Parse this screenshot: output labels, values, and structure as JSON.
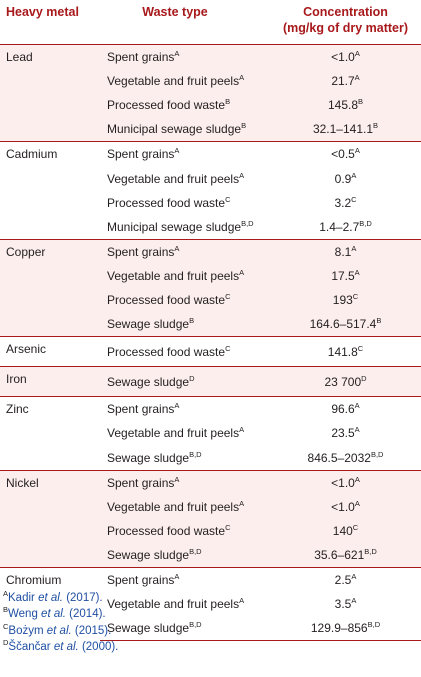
{
  "headers": {
    "metal": "Heavy metal",
    "waste": "Waste type",
    "conc_line1": "Concentration",
    "conc_line2": "(mg/kg of dry matter)"
  },
  "groups": [
    {
      "metal": "Lead",
      "rows": [
        {
          "waste": "Spent grains",
          "waste_sup": "A",
          "value": "<1.0",
          "value_sup": "A"
        },
        {
          "waste": "Vegetable and fruit peels",
          "waste_sup": "A",
          "value": "21.7",
          "value_sup": "A"
        },
        {
          "waste": "Processed food waste",
          "waste_sup": "B",
          "value": "145.8",
          "value_sup": "B"
        },
        {
          "waste": "Municipal sewage sludge",
          "waste_sup": "B",
          "value": "32.1–141.1",
          "value_sup": "B"
        }
      ]
    },
    {
      "metal": "Cadmium",
      "rows": [
        {
          "waste": "Spent grains",
          "waste_sup": "A",
          "value": "<0.5",
          "value_sup": "A"
        },
        {
          "waste": "Vegetable and fruit peels",
          "waste_sup": "A",
          "value": "0.9",
          "value_sup": "A"
        },
        {
          "waste": "Processed food waste",
          "waste_sup": "C",
          "value": "3.2",
          "value_sup": "C"
        },
        {
          "waste": "Municipal sewage sludge",
          "waste_sup": "B,D",
          "value": "1.4–2.7",
          "value_sup": "B,D"
        }
      ]
    },
    {
      "metal": "Copper",
      "rows": [
        {
          "waste": "Spent grains",
          "waste_sup": "A",
          "value": "8.1",
          "value_sup": "A"
        },
        {
          "waste": "Vegetable and fruit peels",
          "waste_sup": "A",
          "value": "17.5",
          "value_sup": "A"
        },
        {
          "waste": "Processed food waste",
          "waste_sup": "C",
          "value": "193",
          "value_sup": "C"
        },
        {
          "waste": "Sewage sludge",
          "waste_sup": "B",
          "value": "164.6–517.4",
          "value_sup": "B"
        }
      ]
    },
    {
      "metal": "Arsenic",
      "rows": [
        {
          "waste": "Processed food waste",
          "waste_sup": "C",
          "value": "141.8",
          "value_sup": "C"
        }
      ]
    },
    {
      "metal": "Iron",
      "rows": [
        {
          "waste": "Sewage sludge",
          "waste_sup": "D",
          "value": "23 700",
          "value_sup": "D"
        }
      ]
    },
    {
      "metal": "Zinc",
      "rows": [
        {
          "waste": "Spent grains",
          "waste_sup": "A",
          "value": "96.6",
          "value_sup": "A"
        },
        {
          "waste": "Vegetable and fruit peels",
          "waste_sup": "A",
          "value": "23.5",
          "value_sup": "A"
        },
        {
          "waste": "Sewage sludge",
          "waste_sup": "B,D",
          "value": "846.5–2032",
          "value_sup": "B,D"
        }
      ]
    },
    {
      "metal": "Nickel",
      "rows": [
        {
          "waste": "Spent grains",
          "waste_sup": "A",
          "value": "<1.0",
          "value_sup": "A"
        },
        {
          "waste": "Vegetable and fruit peels",
          "waste_sup": "A",
          "value": "<1.0",
          "value_sup": "A"
        },
        {
          "waste": "Processed food waste",
          "waste_sup": "C",
          "value": "140",
          "value_sup": "C"
        },
        {
          "waste": "Sewage sludge",
          "waste_sup": "B,D",
          "value": "35.6–621",
          "value_sup": "B,D"
        }
      ]
    },
    {
      "metal": "Chromium",
      "rows": [
        {
          "waste": "Spent grains",
          "waste_sup": "A",
          "value": "2.5",
          "value_sup": "A"
        },
        {
          "waste": "Vegetable and fruit peels",
          "waste_sup": "A",
          "value": "3.5",
          "value_sup": "A"
        },
        {
          "waste": "Sewage sludge",
          "waste_sup": "B,D",
          "value": "129.9–856",
          "value_sup": "B,D"
        }
      ]
    }
  ],
  "footnotes": [
    {
      "sup": "A",
      "author": "Kadir ",
      "etal": "et al.",
      "year": " (2017)."
    },
    {
      "sup": "B",
      "author": "Weng ",
      "etal": "et al.",
      "year": " (2014)."
    },
    {
      "sup": "C",
      "author": "Bożym ",
      "etal": "et al.",
      "year": " (2015)."
    },
    {
      "sup": "D",
      "author": "Ščančar ",
      "etal": "et al.",
      "year": " (2000)."
    }
  ],
  "colors": {
    "header_text": "#a8191c",
    "rule": "#a8191c",
    "tint": "#fbeeed",
    "reference_link": "#1f4fa3"
  }
}
